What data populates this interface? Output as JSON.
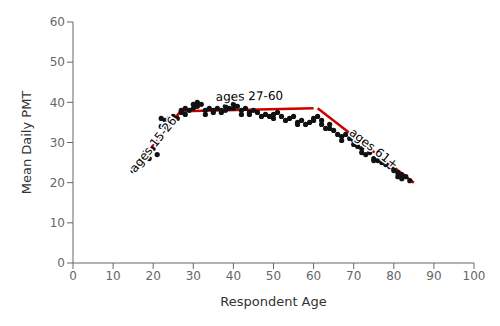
{
  "chart_data": {
    "type": "scatter",
    "title": "",
    "xlabel": "Respondent Age",
    "ylabel": "Mean Daily PMT",
    "xlim": [
      0,
      100
    ],
    "ylim": [
      0,
      60
    ],
    "xticks": [
      0,
      10,
      20,
      30,
      40,
      50,
      60,
      70,
      80,
      90,
      100
    ],
    "yticks": [
      0,
      10,
      20,
      30,
      40,
      50,
      60
    ],
    "series": [
      {
        "type": "scatter",
        "color": "#111111",
        "x": [
          15,
          18,
          19,
          20,
          21,
          22,
          22,
          23,
          23,
          24,
          24,
          25,
          25,
          26,
          27,
          27,
          28,
          28,
          29,
          30,
          30,
          31,
          31,
          32,
          33,
          33,
          34,
          35,
          35,
          36,
          37,
          37,
          38,
          38,
          39,
          40,
          40,
          41,
          42,
          42,
          43,
          44,
          44,
          45,
          46,
          47,
          48,
          49,
          50,
          50,
          51,
          52,
          53,
          54,
          55,
          56,
          56,
          57,
          58,
          59,
          60,
          60,
          61,
          62,
          62,
          63,
          64,
          64,
          65,
          66,
          67,
          67,
          68,
          69,
          70,
          70,
          71,
          72,
          72,
          73,
          74,
          75,
          75,
          76,
          77,
          78,
          79,
          80,
          80,
          81,
          81,
          82,
          82,
          83,
          84
        ],
        "values": [
          23.0,
          27.5,
          26.0,
          28.5,
          27.0,
          36.0,
          34.0,
          35.5,
          33.5,
          36.0,
          35.0,
          36.5,
          35.0,
          36.0,
          38.0,
          37.5,
          38.5,
          37.0,
          38.0,
          39.5,
          38.5,
          40.0,
          39.0,
          39.5,
          38.0,
          37.0,
          38.5,
          38.0,
          37.5,
          38.5,
          38.0,
          37.5,
          39.0,
          38.0,
          38.5,
          39.5,
          38.5,
          39.0,
          38.0,
          37.0,
          38.5,
          37.5,
          37.0,
          38.0,
          37.5,
          36.5,
          37.0,
          36.5,
          37.0,
          36.0,
          37.5,
          36.5,
          35.5,
          36.0,
          36.5,
          35.0,
          34.5,
          35.5,
          34.5,
          35.0,
          36.0,
          35.5,
          36.5,
          35.5,
          34.5,
          33.5,
          34.5,
          33.5,
          33.0,
          32.0,
          31.5,
          30.5,
          32.0,
          31.0,
          30.5,
          29.5,
          29.0,
          28.5,
          27.5,
          27.0,
          27.5,
          26.0,
          25.5,
          25.5,
          25.0,
          24.5,
          24.0,
          23.5,
          23.0,
          22.5,
          21.5,
          22.0,
          21.0,
          21.5,
          20.5
        ]
      },
      {
        "type": "line",
        "color": "#cc0000",
        "x": [
          15,
          27
        ],
        "values": [
          23.0,
          38.0
        ]
      },
      {
        "type": "line",
        "color": "#cc0000",
        "x": [
          27,
          60
        ],
        "values": [
          37.8,
          38.5
        ]
      },
      {
        "type": "line",
        "color": "#cc0000",
        "x": [
          61,
          85
        ],
        "values": [
          38.5,
          20.0
        ]
      }
    ],
    "annotations": [
      {
        "text": "ages 15-26",
        "x": 20.0,
        "y": 29.5
      },
      {
        "text": "ages 27-60",
        "x": 44,
        "y": 41.5
      },
      {
        "text": "ages 61+",
        "x": 75,
        "y": 28.5
      }
    ]
  }
}
